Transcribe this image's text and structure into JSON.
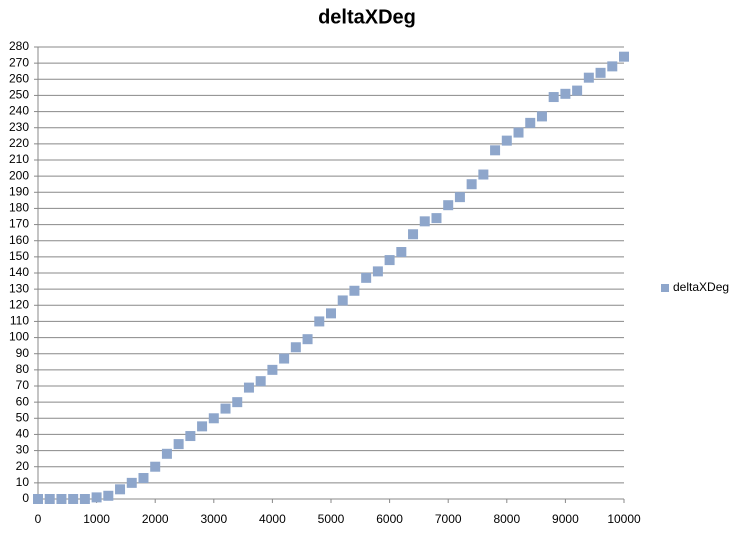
{
  "chart_data": {
    "type": "scatter",
    "title": "deltaXDeg",
    "x": [
      0,
      200,
      400,
      600,
      800,
      1000,
      1200,
      1400,
      1600,
      1800,
      2000,
      2200,
      2400,
      2600,
      2800,
      3000,
      3200,
      3400,
      3600,
      3800,
      4000,
      4200,
      4400,
      4600,
      4800,
      5000,
      5200,
      5400,
      5600,
      5800,
      6000,
      6200,
      6400,
      6600,
      6800,
      7000,
      7200,
      7400,
      7600,
      7800,
      8000,
      8200,
      8400,
      8600,
      8800,
      9000,
      9200,
      9400,
      9600,
      9800,
      10000
    ],
    "series": [
      {
        "name": "deltaXDeg",
        "color": "#8ea6cb",
        "values": [
          0,
          0,
          0,
          0,
          0,
          1,
          2,
          6,
          10,
          13,
          20,
          28,
          34,
          39,
          45,
          50,
          56,
          60,
          69,
          73,
          80,
          87,
          94,
          99,
          110,
          115,
          123,
          129,
          137,
          141,
          148,
          153,
          164,
          172,
          174,
          182,
          187,
          195,
          201,
          216,
          222,
          227,
          233,
          237,
          249,
          251,
          253,
          261,
          264,
          268,
          274
        ]
      }
    ],
    "xlim": [
      0,
      10000
    ],
    "xticks": [
      0,
      1000,
      2000,
      3000,
      4000,
      5000,
      6000,
      7000,
      8000,
      9000,
      10000
    ],
    "ylim": [
      0,
      280
    ],
    "yticks": [
      0,
      10,
      20,
      30,
      40,
      50,
      60,
      70,
      80,
      90,
      100,
      110,
      120,
      130,
      140,
      150,
      160,
      170,
      180,
      190,
      200,
      210,
      220,
      230,
      240,
      250,
      260,
      270,
      280
    ],
    "grid": true,
    "legend": "right"
  }
}
